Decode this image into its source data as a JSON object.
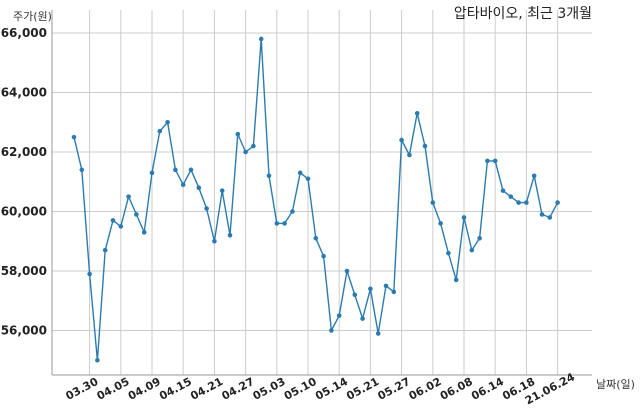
{
  "chart_data": {
    "type": "line",
    "title": "압타바이오, 최근 3개월",
    "ylabel": "주가(원)",
    "xlabel": "날짜(일)",
    "ylim": [
      54500,
      66000
    ],
    "yticks": [
      56000,
      58000,
      60000,
      62000,
      64000,
      66000
    ],
    "ytick_labels": [
      "56,000",
      "58,000",
      "60,000",
      "62,000",
      "64,000",
      "66,000"
    ],
    "grid": true,
    "line_color": "#2b7bb0",
    "xtick_labels": [
      "03.30",
      "04.05",
      "04.09",
      "04.15",
      "04.21",
      "04.27",
      "05.03",
      "05.10",
      "05.14",
      "05.21",
      "05.27",
      "06.02",
      "06.08",
      "06.14",
      "06.18",
      "21.06.24"
    ],
    "xtick_index": [
      2,
      6,
      10,
      14,
      18,
      22,
      26,
      30,
      34,
      38,
      42,
      46,
      50,
      54,
      58,
      62
    ],
    "series": [
      {
        "values": [
          62500,
          61400,
          57900,
          55000,
          58700,
          59700,
          59500,
          60500,
          59900,
          59300,
          61300,
          62700,
          63000,
          61400,
          60900,
          61400,
          60800,
          60100,
          59000,
          60700,
          59200,
          62600,
          62000,
          62200,
          65800,
          61200,
          59600,
          59600,
          60000,
          61300,
          61100,
          59100,
          58500,
          56000,
          56500,
          58000,
          57200,
          56400,
          57400,
          55900,
          57500,
          57300,
          62400,
          61900,
          63300,
          62200,
          60300,
          59600,
          58600,
          57700,
          59800,
          58700,
          59100,
          61700,
          61700,
          60700,
          60500,
          60300,
          60300,
          61200,
          59900,
          59800,
          60300
        ]
      }
    ]
  }
}
